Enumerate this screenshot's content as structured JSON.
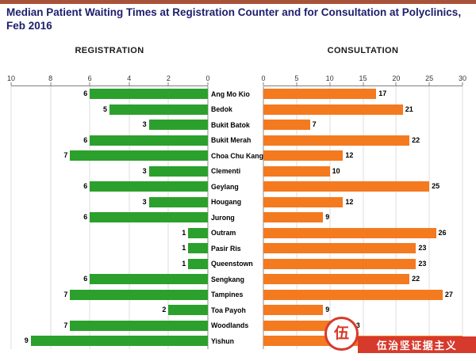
{
  "page": {
    "top_strip_color": "#a8523a",
    "background": "#ffffff"
  },
  "title": "Median Patient Waiting Times at Registration Counter and for Consultation at Polyclinics, Feb 2016",
  "watermark": {
    "text": "伍治坚证据主义",
    "logo_glyph": "伍",
    "color": "#d63a2c"
  },
  "chart_data": {
    "type": "bar",
    "layout": "bidirectional-horizontal",
    "title": "Median Patient Waiting Times at Registration Counter and for Consultation at Polyclinics, Feb 2016",
    "grid": true,
    "legend": "none",
    "categories": [
      "Ang Mo Kio",
      "Bedok",
      "Bukit Batok",
      "Bukit Merah",
      "Choa Chu Kang",
      "Clementi",
      "Geylang",
      "Hougang",
      "Jurong",
      "Outram",
      "Pasir Ris",
      "Queenstown",
      "Sengkang",
      "Tampines",
      "Toa Payoh",
      "Woodlands",
      "Yishun"
    ],
    "series": [
      {
        "name": "REGISTRATION",
        "side": "left",
        "direction": "right-to-left",
        "color": "#2ca02c",
        "axis_max": 10,
        "axis_ticks": [
          10,
          8,
          6,
          4,
          2,
          0
        ],
        "values": [
          6,
          5,
          3,
          6,
          7,
          3,
          6,
          3,
          6,
          1,
          1,
          1,
          6,
          7,
          2,
          7,
          9
        ],
        "value_labels": [
          "6",
          "5",
          "3",
          "6",
          "7",
          "3",
          "6",
          "3",
          "6",
          "1",
          "1",
          "1",
          "6",
          "7",
          "2",
          "7",
          "9"
        ]
      },
      {
        "name": "CONSULTATION",
        "side": "right",
        "direction": "left-to-right",
        "color": "#f47a20",
        "axis_max": 30,
        "axis_ticks": [
          0,
          5,
          10,
          15,
          20,
          25,
          30
        ],
        "values": [
          17,
          21,
          7,
          22,
          12,
          10,
          25,
          12,
          9,
          26,
          23,
          23,
          22,
          27,
          9,
          13,
          30
        ],
        "value_labels": [
          "17",
          "21",
          "7",
          "22",
          "12",
          "10",
          "25",
          "12",
          "9",
          "26",
          "23",
          "23",
          "22",
          "27",
          "9",
          "13",
          ""
        ]
      }
    ]
  }
}
